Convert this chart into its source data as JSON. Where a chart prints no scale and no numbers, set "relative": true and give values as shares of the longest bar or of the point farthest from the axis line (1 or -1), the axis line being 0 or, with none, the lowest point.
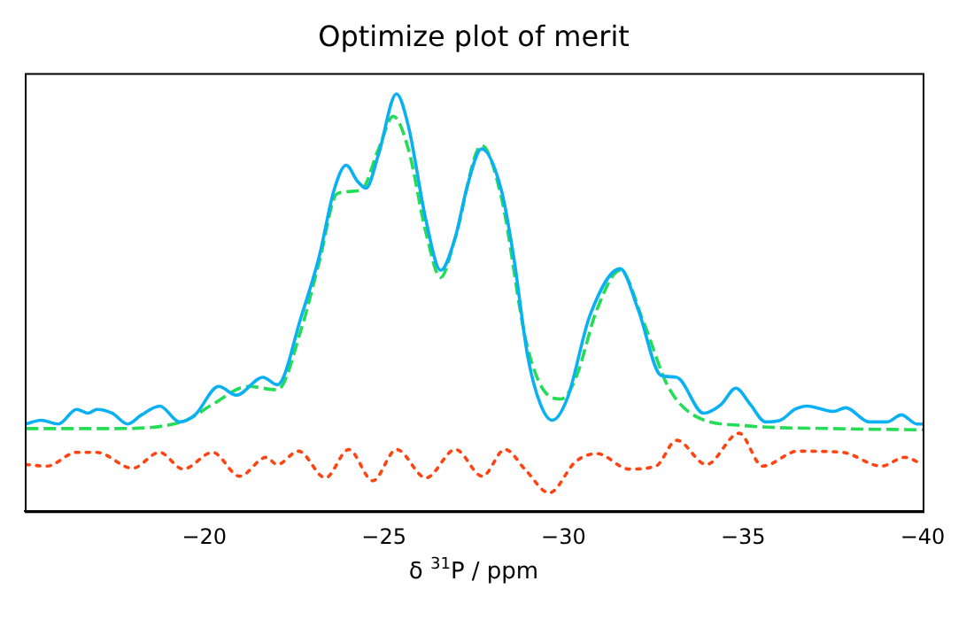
{
  "chart_data": {
    "type": "line",
    "title": "Optimize plot of merit",
    "xlabel": "δ $^{31}$P / ppm",
    "relative": true,
    "xlim": [
      -15,
      -40
    ],
    "xticks": [
      -20,
      -25,
      -30,
      -35,
      -40
    ],
    "grid": false,
    "legend": false,
    "marker": "none",
    "series": [
      {
        "color": "#0ab0f4",
        "line_style": "solid",
        "x": [
          -15.03,
          -15.45,
          -15.94,
          -16.44,
          -16.77,
          -17.01,
          -17.43,
          -17.87,
          -18.25,
          -18.76,
          -19.31,
          -19.74,
          -20.4,
          -20.89,
          -21.63,
          -22.03,
          -22.71,
          -23.2,
          -23.61,
          -23.95,
          -24.26,
          -24.5,
          -24.85,
          -25.35,
          -25.68,
          -26.17,
          -26.58,
          -26.98,
          -27.33,
          -27.72,
          -28.27,
          -28.61,
          -29.01,
          -29.36,
          -29.69,
          -30.1,
          -30.74,
          -31.58,
          -32.08,
          -32.72,
          -33.15,
          -33.9,
          -34.39,
          -34.8,
          -35.2,
          -35.63,
          -36.04,
          -36.44,
          -36.78,
          -37.52,
          -37.86,
          -38.51,
          -39.01,
          -39.41,
          -39.84,
          -40.0
        ],
        "values": [
          0.209,
          0.218,
          0.209,
          0.244,
          0.235,
          0.244,
          0.235,
          0.209,
          0.231,
          0.252,
          0.214,
          0.231,
          0.299,
          0.278,
          0.321,
          0.303,
          0.47,
          0.611,
          0.769,
          0.829,
          0.791,
          0.774,
          0.855,
          1,
          0.923,
          0.697,
          0.577,
          0.654,
          0.782,
          0.868,
          0.769,
          0.611,
          0.368,
          0.256,
          0.218,
          0.269,
          0.47,
          0.581,
          0.483,
          0.325,
          0.321,
          0.235,
          0.256,
          0.295,
          0.256,
          0.214,
          0.218,
          0.244,
          0.252,
          0.239,
          0.248,
          0.214,
          0.214,
          0.231,
          0.209,
          0.209
        ]
      },
      {
        "color": "#22dd55",
        "line_style": "dashed",
        "x": [
          -15.03,
          -17.43,
          -19.41,
          -20.23,
          -21.22,
          -22.03,
          -22.71,
          -23.2,
          -23.7,
          -24.36,
          -24.85,
          -25.26,
          -25.68,
          -26.17,
          -26.58,
          -26.98,
          -27.72,
          -28.27,
          -28.95,
          -29.44,
          -29.94,
          -30.35,
          -30.93,
          -31.58,
          -32.23,
          -32.91,
          -33.71,
          -35.05,
          -37.52,
          -40.0
        ],
        "values": [
          0.198,
          0.198,
          0.215,
          0.256,
          0.299,
          0.291,
          0.44,
          0.598,
          0.761,
          0.769,
          0.868,
          0.946,
          0.868,
          0.667,
          0.56,
          0.654,
          0.876,
          0.752,
          0.41,
          0.291,
          0.269,
          0.321,
          0.483,
          0.577,
          0.453,
          0.299,
          0.226,
          0.205,
          0.198,
          0.195
        ]
      },
      {
        "color": "#ff4411",
        "line_style": "dotted",
        "x": [
          -15.03,
          -15.61,
          -16.44,
          -17.01,
          -18.0,
          -18.75,
          -19.41,
          -20.23,
          -20.98,
          -21.72,
          -22.03,
          -22.62,
          -23.37,
          -24.02,
          -24.69,
          -25.35,
          -26.17,
          -26.99,
          -27.74,
          -28.37,
          -28.95,
          -29.6,
          -30.35,
          -30.93,
          -31.83,
          -32.57,
          -33.15,
          -33.98,
          -34.89,
          -35.54,
          -36.53,
          -37.77,
          -38.85,
          -39.5,
          -40.0
        ],
        "values": [
          0.112,
          0.108,
          0.141,
          0.141,
          0.103,
          0.141,
          0.101,
          0.141,
          0.084,
          0.129,
          0.112,
          0.144,
          0.08,
          0.148,
          0.073,
          0.148,
          0.08,
          0.148,
          0.084,
          0.148,
          0.098,
          0.044,
          0.12,
          0.138,
          0.101,
          0.108,
          0.17,
          0.112,
          0.187,
          0.108,
          0.144,
          0.141,
          0.108,
          0.129,
          0.112
        ]
      }
    ]
  }
}
